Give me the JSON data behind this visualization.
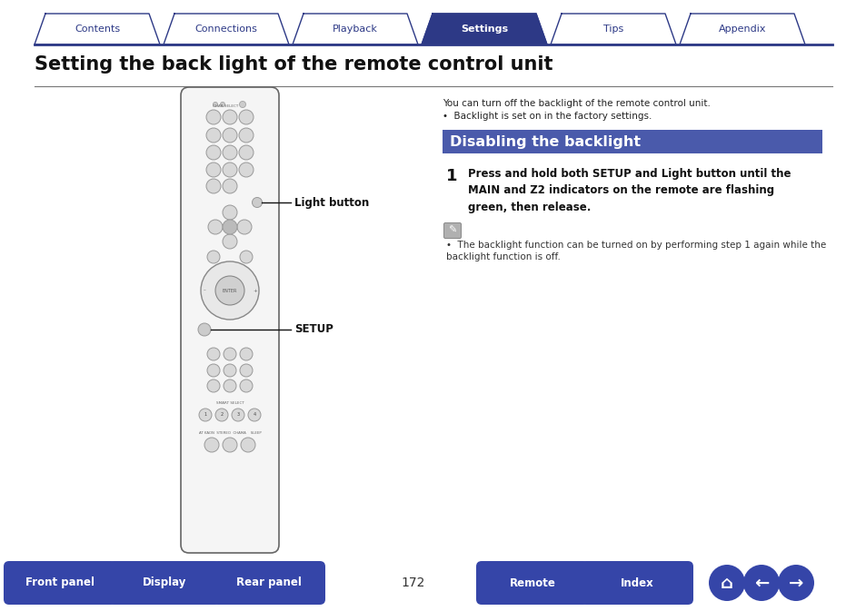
{
  "bg_color": "#ffffff",
  "nav_tabs": [
    "Contents",
    "Connections",
    "Playback",
    "Settings",
    "Tips",
    "Appendix"
  ],
  "nav_active": 3,
  "nav_color_inactive_bg": "#ffffff",
  "nav_color_active_bg": "#2d3986",
  "nav_color_text_inactive": "#2d3986",
  "nav_color_text_active": "#ffffff",
  "nav_border_color": "#2d3986",
  "page_title": "Setting the back light of the remote control unit",
  "title_color": "#111111",
  "section_header": "Disabling the backlight",
  "section_header_bg": "#4a5aab",
  "section_header_text_color": "#ffffff",
  "intro_line1": "You can turn off the backlight of the remote control unit.",
  "intro_bullet": "Backlight is set on in the factory settings.",
  "step_number": "1",
  "step_text": "Press and hold both SETUP and Light button until the\nMAIN and Z2 indicators on the remote are flashing\ngreen, then release.",
  "note_text": "The backlight function can be turned on by performing step 1 again while the\nbacklight function is off.",
  "light_button_label": "Light button",
  "setup_label": "SETUP",
  "bottom_buttons": [
    "Front panel",
    "Display",
    "Rear panel",
    "Remote",
    "Index"
  ],
  "page_number": "172",
  "bottom_btn_color": "#3545a8",
  "bottom_btn_text_color": "#ffffff",
  "remote_outline_color": "#666666",
  "remote_fill_color": "#f5f5f5",
  "remote_btn_fill": "#d8d8d8",
  "remote_btn_ec": "#999999"
}
